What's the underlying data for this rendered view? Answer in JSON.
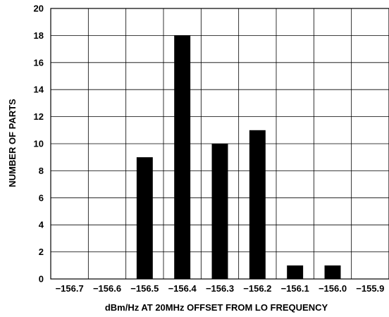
{
  "chart_data": {
    "type": "bar",
    "xlabel": "dBm/Hz AT 20MHz OFFSET FROM LO FREQUENCY",
    "ylabel": "NUMBER OF PARTS",
    "x_tick_labels": [
      "−156.7",
      "−156.6",
      "−156.5",
      "−156.4",
      "−156.3",
      "−156.2",
      "−156.1",
      "−156.0",
      "−155.9"
    ],
    "y_tick_labels": [
      "0",
      "2",
      "4",
      "6",
      "8",
      "10",
      "12",
      "14",
      "16",
      "18",
      "20"
    ],
    "categories": [
      "−156.5",
      "−156.4",
      "−156.3",
      "−156.2",
      "−156.1",
      "−156.0"
    ],
    "values": [
      9,
      18,
      10,
      11,
      1,
      1
    ],
    "x_values": [
      -156.5,
      -156.4,
      -156.3,
      -156.2,
      -156.1,
      -156.0
    ],
    "xlim": [
      -156.75,
      -155.85
    ],
    "ylim": [
      0,
      20
    ],
    "grid": true,
    "bar_color": "#000000"
  }
}
